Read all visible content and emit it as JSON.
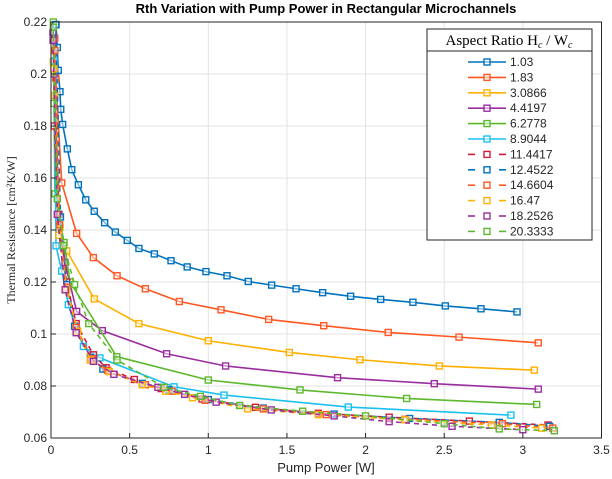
{
  "chart_data": {
    "type": "line",
    "title": "Rth Variation with Pump Power in Rectangular Microchannels",
    "xlabel": "Pump Power [W]",
    "ylabel": "Thermal Resistance [cm²K/W]",
    "xlim": [
      0,
      3.5
    ],
    "ylim": [
      0.06,
      0.22
    ],
    "xticks": [
      "0",
      "0.5",
      "1",
      "1.5",
      "2",
      "2.5",
      "3",
      "3.5"
    ],
    "yticks": [
      "0.06",
      "0.08",
      "0.1",
      "0.12",
      "0.14",
      "0.16",
      "0.18",
      "0.2",
      "0.22"
    ],
    "grid": true,
    "legend": {
      "title": "Aspect Ratio H",
      "title_sub1": "c",
      "title_mid": " / W",
      "title_sub2": "c",
      "placement": "top-right"
    },
    "marker": "square",
    "series": [
      {
        "name": "1.03",
        "color": "#0072BD",
        "dash": false,
        "x": [
          0.032,
          0.04,
          0.046,
          0.057,
          0.062,
          0.074,
          0.104,
          0.132,
          0.174,
          0.221,
          0.275,
          0.341,
          0.409,
          0.485,
          0.559,
          0.657,
          0.763,
          0.866,
          0.985,
          1.119,
          1.254,
          1.403,
          1.558,
          1.727,
          1.905,
          2.096,
          2.301,
          2.507,
          2.734,
          2.963
        ],
        "y": [
          0.219,
          0.2102,
          0.2014,
          0.1932,
          0.1864,
          0.1806,
          0.1712,
          0.1632,
          0.1574,
          0.1516,
          0.1472,
          0.1428,
          0.1392,
          0.136,
          0.1329,
          0.1308,
          0.1282,
          0.1258,
          0.124,
          0.1224,
          0.1202,
          0.1188,
          0.1174,
          0.1159,
          0.1145,
          0.1133,
          0.1122,
          0.1108,
          0.1097,
          0.1085
        ]
      },
      {
        "name": "1.83",
        "color": "#FF5722",
        "dash": false,
        "x": [
          0.024,
          0.03,
          0.068,
          0.163,
          0.269,
          0.42,
          0.6,
          0.816,
          1.081,
          1.384,
          1.734,
          2.144,
          2.594,
          3.098
        ],
        "y": [
          0.2138,
          0.1984,
          0.1581,
          0.1387,
          0.1294,
          0.1224,
          0.1174,
          0.1125,
          0.1093,
          0.1056,
          0.1032,
          0.1006,
          0.0988,
          0.0966
        ]
      },
      {
        "name": "3.0866",
        "color": "#FFB000",
        "dash": false,
        "x": [
          0.015,
          0.024,
          0.057,
          0.1,
          0.275,
          0.559,
          1.0,
          1.515,
          1.964,
          2.469,
          3.073
        ],
        "y": [
          0.2048,
          0.1917,
          0.141,
          0.132,
          0.1135,
          0.104,
          0.0974,
          0.0929,
          0.0901,
          0.0877,
          0.0861
        ]
      },
      {
        "name": "4.4197",
        "color": "#9A2EA0",
        "dash": false,
        "x": [
          0.012,
          0.02,
          0.05,
          0.089,
          0.163,
          0.326,
          0.735,
          1.11,
          1.822,
          2.437,
          3.098
        ],
        "y": [
          0.216,
          0.2,
          0.146,
          0.1275,
          0.1087,
          0.1013,
          0.0924,
          0.0877,
          0.0832,
          0.0809,
          0.0788
        ]
      },
      {
        "name": "6.2778",
        "color": "#5DB82E",
        "dash": false,
        "x": [
          0.015,
          0.019,
          0.025,
          0.083,
          0.121,
          0.418,
          1.0,
          1.583,
          2.261,
          3.088
        ],
        "y": [
          0.22,
          0.1887,
          0.1539,
          0.1352,
          0.12,
          0.0913,
          0.0823,
          0.0785,
          0.0752,
          0.0729
        ]
      },
      {
        "name": "8.9044",
        "color": "#1CC0F0",
        "dash": false,
        "x": [
          0.02,
          0.032,
          0.068,
          0.11,
          0.163,
          0.206,
          0.311,
          0.782,
          1.1,
          1.89,
          2.924
        ],
        "y": [
          0.205,
          0.1339,
          0.1242,
          0.1113,
          0.1017,
          0.0952,
          0.0908,
          0.0797,
          0.0765,
          0.0719,
          0.0688
        ]
      },
      {
        "name": "11.4417",
        "color": "#D01C3C",
        "dash": true,
        "x": [
          0.02,
          0.05,
          0.1,
          0.16,
          0.27,
          0.35,
          0.53,
          0.7,
          0.96,
          1.3,
          1.7,
          2.15,
          2.66,
          3.16
        ],
        "y": [
          0.18,
          0.146,
          0.12,
          0.104,
          0.092,
          0.087,
          0.0825,
          0.079,
          0.075,
          0.0718,
          0.0695,
          0.068,
          0.0665,
          0.065
        ]
      },
      {
        "name": "12.4522",
        "color": "#0072BD",
        "dash": true,
        "x": [
          0.03,
          0.06,
          0.1,
          0.15,
          0.25,
          0.33,
          0.58,
          0.75,
          1.0,
          1.35,
          1.8,
          2.28,
          2.85,
          3.17
        ],
        "y": [
          0.219,
          0.145,
          0.119,
          0.103,
          0.091,
          0.0865,
          0.081,
          0.0785,
          0.0748,
          0.0715,
          0.0692,
          0.0675,
          0.066,
          0.0645
        ]
      },
      {
        "name": "14.6604",
        "color": "#FF5722",
        "dash": true,
        "x": [
          0.025,
          0.055,
          0.1,
          0.16,
          0.26,
          0.36,
          0.6,
          0.77,
          0.98,
          1.35,
          1.75,
          2.25,
          2.87,
          3.19
        ],
        "y": [
          0.209,
          0.142,
          0.118,
          0.1025,
          0.0905,
          0.086,
          0.0805,
          0.078,
          0.0745,
          0.0712,
          0.069,
          0.0672,
          0.0655,
          0.0638
        ]
      },
      {
        "name": "16.47",
        "color": "#FFB000",
        "dash": true,
        "x": [
          0.018,
          0.05,
          0.1,
          0.17,
          0.25,
          0.37,
          0.58,
          0.73,
          0.9,
          1.25,
          1.7,
          2.25,
          2.8,
          3.12
        ],
        "y": [
          0.202,
          0.138,
          0.117,
          0.101,
          0.09,
          0.0855,
          0.0805,
          0.078,
          0.0755,
          0.0712,
          0.069,
          0.067,
          0.065,
          0.0638
        ]
      },
      {
        "name": "18.2526",
        "color": "#9A2EA0",
        "dash": true,
        "x": [
          0.013,
          0.04,
          0.09,
          0.16,
          0.27,
          0.4,
          0.68,
          0.85,
          1.05,
          1.4,
          1.8,
          2.15,
          2.55,
          3.0
        ],
        "y": [
          0.213,
          0.146,
          0.117,
          0.1005,
          0.0895,
          0.0845,
          0.0795,
          0.0768,
          0.0738,
          0.0708,
          0.0685,
          0.0663,
          0.0645,
          0.0632
        ]
      },
      {
        "name": "20.3333",
        "color": "#5DB82E",
        "dash": true,
        "x": [
          0.015,
          0.04,
          0.08,
          0.15,
          0.24,
          0.42,
          0.72,
          0.95,
          1.2,
          1.6,
          2.0,
          2.5,
          2.85,
          3.2
        ],
        "y": [
          0.218,
          0.152,
          0.134,
          0.119,
          0.104,
          0.09,
          0.0795,
          0.076,
          0.0725,
          0.0703,
          0.0685,
          0.0655,
          0.0635,
          0.0628
        ]
      }
    ]
  }
}
